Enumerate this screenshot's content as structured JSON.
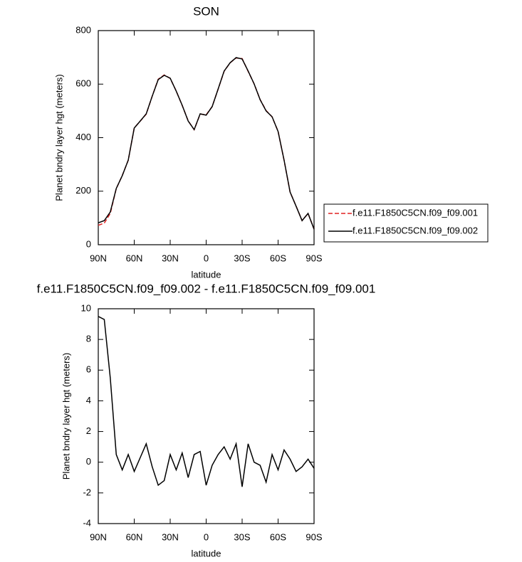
{
  "chart_data": [
    {
      "type": "line",
      "title": "SON",
      "xlabel": "latitude",
      "ylabel": "Planet bndry layer hgt (meters)",
      "x": [
        90,
        85,
        80,
        75,
        70,
        65,
        60,
        55,
        50,
        45,
        40,
        35,
        30,
        25,
        20,
        15,
        10,
        5,
        0,
        -5,
        -10,
        -15,
        -20,
        -25,
        -30,
        -35,
        -40,
        -45,
        -50,
        -55,
        -60,
        -65,
        -70,
        -75,
        -80,
        -85,
        -90
      ],
      "xlim": [
        90,
        -90
      ],
      "xticks": [
        {
          "value": 90,
          "label": "90N"
        },
        {
          "value": 60,
          "label": "60N"
        },
        {
          "value": 30,
          "label": "30N"
        },
        0,
        {
          "value": -30,
          "label": "30S"
        },
        {
          "value": -60,
          "label": "60S"
        },
        {
          "value": -90,
          "label": "90S"
        }
      ],
      "ylim": [
        0,
        800
      ],
      "yticks": [
        0,
        200,
        400,
        600,
        800
      ],
      "legend": "right",
      "series": [
        {
          "name": "f.e11.F1850C5CN.f09_f09.001",
          "color": "#e02020",
          "dashed": true,
          "values": [
            72.5,
            80.7,
            116.5,
            209.5,
            258.5,
            315.5,
            436.6,
            461.7,
            487.8,
            555.3,
            618.5,
            634.2,
            621.5,
            574.5,
            520.4,
            463,
            429.5,
            488.3,
            485.5,
            516.2,
            581.5,
            648,
            679.8,
            697.8,
            695.6,
            647.8,
            601,
            542.2,
            501.3,
            477.5,
            423.5,
            315.2,
            196.8,
            144.6,
            90.3,
            116.8,
            58.4
          ]
        },
        {
          "name": "f.e11.F1850C5CN.f09_f09.002",
          "color": "#000000",
          "dashed": false,
          "values": [
            82,
            90,
            122,
            210,
            258,
            316,
            436,
            462,
            489,
            555,
            617,
            633,
            622,
            574,
            521,
            462,
            430,
            489,
            484,
            516,
            582,
            649,
            680,
            699,
            694,
            649,
            601,
            542,
            500,
            478,
            423,
            316,
            197,
            144,
            90,
            117,
            58
          ]
        }
      ]
    },
    {
      "type": "line",
      "title": "f.e11.F1850C5CN.f09_f09.002 - f.e11.F1850C5CN.f09_f09.001",
      "xlabel": "latitude",
      "ylabel": "Planet bndry layer hgt (meters)",
      "x": [
        90,
        85,
        80,
        75,
        70,
        65,
        60,
        55,
        50,
        45,
        40,
        35,
        30,
        25,
        20,
        15,
        10,
        5,
        0,
        -5,
        -10,
        -15,
        -20,
        -25,
        -30,
        -35,
        -40,
        -45,
        -50,
        -55,
        -60,
        -65,
        -70,
        -75,
        -80,
        -85,
        -90
      ],
      "xlim": [
        90,
        -90
      ],
      "xticks": [
        {
          "value": 90,
          "label": "90N"
        },
        {
          "value": 60,
          "label": "60N"
        },
        {
          "value": 30,
          "label": "30N"
        },
        0,
        {
          "value": -30,
          "label": "30S"
        },
        {
          "value": -60,
          "label": "60S"
        },
        {
          "value": -90,
          "label": "90S"
        }
      ],
      "ylim": [
        -4,
        10
      ],
      "yticks": [
        -4,
        -2,
        0,
        2,
        4,
        6,
        8,
        10
      ],
      "series": [
        {
          "color": "#000000",
          "dashed": false,
          "values": [
            9.5,
            9.3,
            5.5,
            0.5,
            -0.5,
            0.5,
            -0.6,
            0.3,
            1.2,
            -0.3,
            -1.5,
            -1.2,
            0.5,
            -0.5,
            0.6,
            -1.0,
            0.5,
            0.7,
            -1.5,
            -0.2,
            0.5,
            1.0,
            0.2,
            1.2,
            -1.6,
            1.2,
            0.0,
            -0.2,
            -1.3,
            0.5,
            -0.5,
            0.8,
            0.2,
            -0.6,
            -0.3,
            0.2,
            -0.4
          ]
        }
      ]
    }
  ]
}
